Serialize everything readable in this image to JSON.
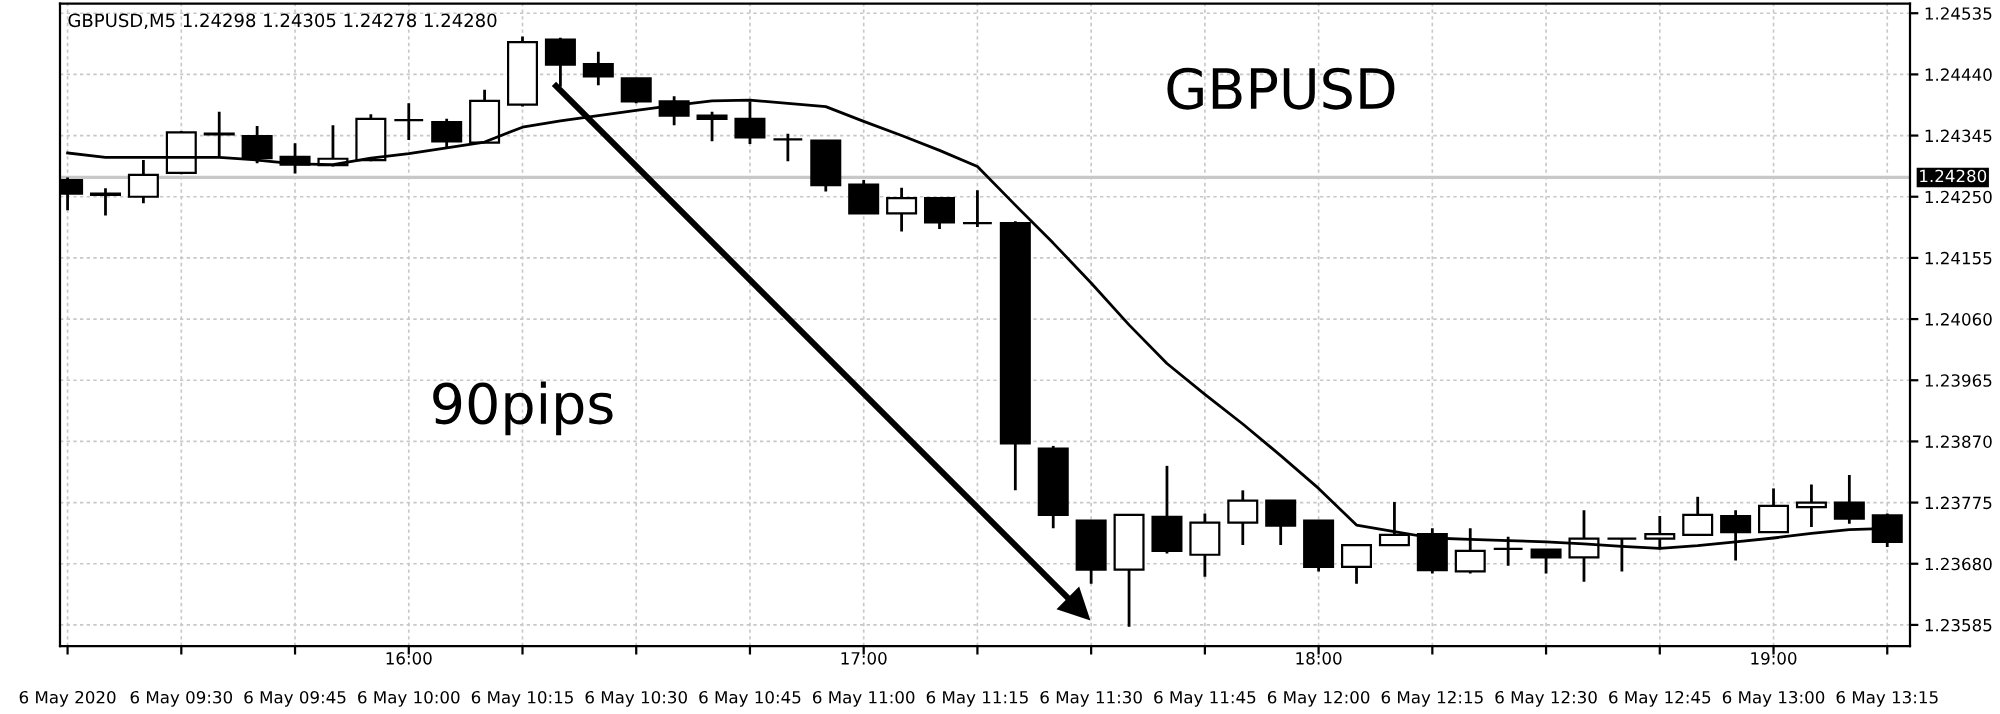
{
  "chart_data": {
    "type": "candlestick",
    "title": "GBPUSD,M5 1.24298 1.24305 1.24278 1.24280",
    "annotations": [
      "GBPUSD",
      "90pips"
    ],
    "x": [
      "2020-05-06T09:15",
      "2020-05-06T09:20",
      "2020-05-06T09:25",
      "2020-05-06T09:30",
      "2020-05-06T09:35",
      "2020-05-06T09:40",
      "2020-05-06T09:45",
      "2020-05-06T09:50",
      "2020-05-06T09:55",
      "2020-05-06T10:00",
      "2020-05-06T10:05",
      "2020-05-06T10:10",
      "2020-05-06T10:15",
      "2020-05-06T10:20",
      "2020-05-06T10:25",
      "2020-05-06T10:30",
      "2020-05-06T10:35",
      "2020-05-06T10:40",
      "2020-05-06T10:45",
      "2020-05-06T10:50",
      "2020-05-06T10:55",
      "2020-05-06T11:00",
      "2020-05-06T11:05",
      "2020-05-06T11:10",
      "2020-05-06T11:15",
      "2020-05-06T11:20",
      "2020-05-06T11:25",
      "2020-05-06T11:30",
      "2020-05-06T11:35",
      "2020-05-06T11:40",
      "2020-05-06T11:45",
      "2020-05-06T11:50",
      "2020-05-06T11:55",
      "2020-05-06T12:00",
      "2020-05-06T12:05",
      "2020-05-06T12:10",
      "2020-05-06T12:15",
      "2020-05-06T12:20",
      "2020-05-06T12:25",
      "2020-05-06T12:30",
      "2020-05-06T12:35",
      "2020-05-06T12:40",
      "2020-05-06T12:45",
      "2020-05-06T12:50",
      "2020-05-06T12:55",
      "2020-05-06T13:00",
      "2020-05-06T13:05",
      "2020-05-06T13:10",
      "2020-05-06T13:15"
    ],
    "ohlc": [
      [
        1.24276,
        1.2428,
        1.24229,
        1.24255
      ],
      [
        1.24255,
        1.24263,
        1.24221,
        1.24253
      ],
      [
        1.2425,
        1.24307,
        1.2424,
        1.24284
      ],
      [
        1.24287,
        1.24352,
        1.24285,
        1.2435
      ],
      [
        1.24348,
        1.24382,
        1.24312,
        1.24347
      ],
      [
        1.24344,
        1.2436,
        1.24302,
        1.2431
      ],
      [
        1.24312,
        1.24333,
        1.24286,
        1.243
      ],
      [
        1.24299,
        1.24361,
        1.24297,
        1.24309
      ],
      [
        1.24307,
        1.24378,
        1.24305,
        1.24371
      ],
      [
        1.24369,
        1.24395,
        1.24338,
        1.24369
      ],
      [
        1.24366,
        1.24371,
        1.24326,
        1.24336
      ],
      [
        1.24334,
        1.24416,
        1.24334,
        1.24399
      ],
      [
        1.24393,
        1.24499,
        1.2439,
        1.2449
      ],
      [
        1.24494,
        1.24497,
        1.24421,
        1.24455
      ],
      [
        1.24456,
        1.24475,
        1.24423,
        1.24437
      ],
      [
        1.24434,
        1.24434,
        1.24395,
        1.24398
      ],
      [
        1.24398,
        1.24406,
        1.24361,
        1.24376
      ],
      [
        1.24376,
        1.24382,
        1.24336,
        1.24371
      ],
      [
        1.24371,
        1.24398,
        1.24332,
        1.24342
      ],
      [
        1.24339,
        1.24348,
        1.24305,
        1.24339
      ],
      [
        1.24337,
        1.24337,
        1.24258,
        1.24268
      ],
      [
        1.24269,
        1.24276,
        1.24224,
        1.24224
      ],
      [
        1.24224,
        1.24264,
        1.24196,
        1.24248
      ],
      [
        1.24248,
        1.24248,
        1.242,
        1.2421
      ],
      [
        1.24209,
        1.2426,
        1.24203,
        1.24209
      ],
      [
        1.24209,
        1.24212,
        1.23794,
        1.23867
      ],
      [
        1.23859,
        1.23863,
        1.23735,
        1.23756
      ],
      [
        1.23747,
        1.23747,
        1.23649,
        1.23671
      ],
      [
        1.23671,
        1.23756,
        1.23582,
        1.23756
      ],
      [
        1.23753,
        1.23832,
        1.23696,
        1.237
      ],
      [
        1.23694,
        1.23758,
        1.2366,
        1.23744
      ],
      [
        1.23744,
        1.23794,
        1.23709,
        1.23778
      ],
      [
        1.23778,
        1.23778,
        1.23709,
        1.23739
      ],
      [
        1.23747,
        1.23747,
        1.23668,
        1.23675
      ],
      [
        1.23675,
        1.23709,
        1.23649,
        1.23709
      ],
      [
        1.23709,
        1.23776,
        1.23709,
        1.23725
      ],
      [
        1.23726,
        1.23735,
        1.23665,
        1.2367
      ],
      [
        1.23668,
        1.23735,
        1.23665,
        1.237
      ],
      [
        1.23703,
        1.23722,
        1.23677,
        1.23703
      ],
      [
        1.23702,
        1.23702,
        1.23665,
        1.2369
      ],
      [
        1.2369,
        1.23763,
        1.23652,
        1.23719
      ],
      [
        1.23719,
        1.2372,
        1.23668,
        1.23719
      ],
      [
        1.23719,
        1.23754,
        1.23702,
        1.23726
      ],
      [
        1.23725,
        1.23784,
        1.23725,
        1.23756
      ],
      [
        1.23754,
        1.23763,
        1.23685,
        1.23729
      ],
      [
        1.23729,
        1.23797,
        1.23729,
        1.2377
      ],
      [
        1.23768,
        1.23803,
        1.23737,
        1.23775
      ],
      [
        1.23775,
        1.23818,
        1.23742,
        1.2375
      ],
      [
        1.23755,
        1.23758,
        1.23706,
        1.23714
      ]
    ],
    "series": [
      {
        "type": "line",
        "color": "#000000",
        "values": [
          1.24318,
          1.24311,
          1.24311,
          1.24311,
          1.24311,
          1.24307,
          1.24301,
          1.243,
          1.2431,
          1.24317,
          1.24326,
          1.24335,
          1.24358,
          1.24368,
          1.24376,
          1.24384,
          1.24392,
          1.24399,
          1.244,
          1.24395,
          1.2439,
          1.24367,
          1.24345,
          1.24322,
          1.24297,
          1.24237,
          1.24178,
          1.24116,
          1.24051,
          1.23991,
          1.23943,
          1.23897,
          1.23848,
          1.23797,
          1.2374,
          1.2373,
          1.2372,
          1.23718,
          1.23716,
          1.23714,
          1.23711,
          1.23707,
          1.23704,
          1.23708,
          1.23714,
          1.2372,
          1.23727,
          1.23733,
          1.23735
        ]
      }
    ],
    "ylim": [
      1.23552,
      1.2455
    ],
    "yticks": [
      1.24535,
      {
        "value": 1.2444,
        "label": "1.24440"
      },
      1.24345,
      {
        "value": 1.2425,
        "label": "1.24250"
      },
      1.24155,
      {
        "value": 1.2406,
        "label": "1.24060"
      },
      1.23965,
      {
        "value": 1.2387,
        "label": "1.23870"
      },
      1.23775,
      {
        "value": 1.2368,
        "label": "1.23680"
      },
      1.23585
    ],
    "x2lim": [
      "2020-05-06T09:14",
      "2020-05-06T13:18"
    ],
    "xlim": [
      "2020-05-06T09:14",
      "2020-05-06T13:18"
    ],
    "xticks": [
      {
        "value": "2020-05-06T09:15",
        "label": "6 May 2020"
      },
      {
        "value": "2020-05-06T09:30",
        "label": "6 May 09:30"
      },
      {
        "value": "2020-05-06T09:45",
        "label": "6 May 09:45"
      },
      {
        "value": "2020-05-06T10:00",
        "label": "6 May 10:00"
      },
      {
        "value": "2020-05-06T10:15",
        "label": "6 May 10:15"
      },
      {
        "value": "2020-05-06T10:30",
        "label": "6 May 10:30"
      },
      {
        "value": "2020-05-06T10:45",
        "label": "6 May 10:45"
      },
      {
        "value": "2020-05-06T11:00",
        "label": "6 May 11:00"
      },
      {
        "value": "2020-05-06T11:15",
        "label": "6 May 11:15"
      },
      {
        "value": "2020-05-06T11:30",
        "label": "6 May 11:30"
      },
      {
        "value": "2020-05-06T11:45",
        "label": "6 May 11:45"
      },
      {
        "value": "2020-05-06T12:00",
        "label": "6 May 12:00"
      },
      {
        "value": "2020-05-06T12:15",
        "label": "6 May 12:15"
      },
      {
        "value": "2020-05-06T12:30",
        "label": "6 May 12:30"
      },
      {
        "value": "2020-05-06T12:45",
        "label": "6 May 12:45"
      },
      {
        "value": "2020-05-06T13:00",
        "label": "6 May 13:00"
      },
      {
        "value": "2020-05-06T13:15",
        "label": "6 May 13:15"
      }
    ],
    "x2ticks": [
      {
        "value": "2020-05-06T10:00",
        "label": "16:00"
      },
      {
        "value": "2020-05-06T11:00",
        "label": "17:00"
      },
      {
        "value": "2020-05-06T12:00",
        "label": "18:00"
      },
      {
        "value": "2020-05-06T13:00",
        "label": "19:00"
      }
    ],
    "ref_lines": [
      {
        "axis": "y",
        "value": 1.2428,
        "label": "1.24280",
        "color": "#c8c8c8"
      }
    ],
    "grid": true,
    "legend": false
  }
}
